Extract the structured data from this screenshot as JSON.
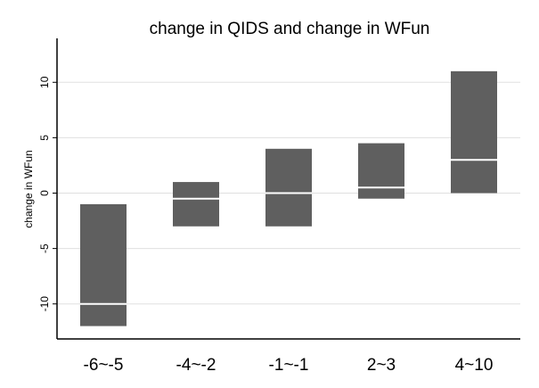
{
  "chart_data": {
    "type": "box",
    "title": "change in QIDS and change in WFun",
    "xlabel": "",
    "ylabel": "change in WFun",
    "categories": [
      "-6~-5",
      "-4~-2",
      "-1~-1",
      "2~3",
      "4~10"
    ],
    "boxes": [
      {
        "category": "-6~-5",
        "q1": -12,
        "median": -10,
        "q3": -1
      },
      {
        "category": "-4~-2",
        "q1": -3,
        "median": -0.5,
        "q3": 1
      },
      {
        "category": "-1~-1",
        "q1": -3,
        "median": 0,
        "q3": 4
      },
      {
        "category": "2~3",
        "q1": -0.5,
        "median": 0.5,
        "q3": 4.5
      },
      {
        "category": "4~10",
        "q1": 0,
        "median": 3,
        "q3": 11
      }
    ],
    "ylim": [
      -13,
      13
    ],
    "yticks": [
      -10,
      -5,
      0,
      5,
      10
    ],
    "grid": true,
    "colors": {
      "box": "#5f5f5f",
      "median": "#ffffff",
      "grid": "#e0e0e0",
      "axis": "#000000"
    }
  }
}
